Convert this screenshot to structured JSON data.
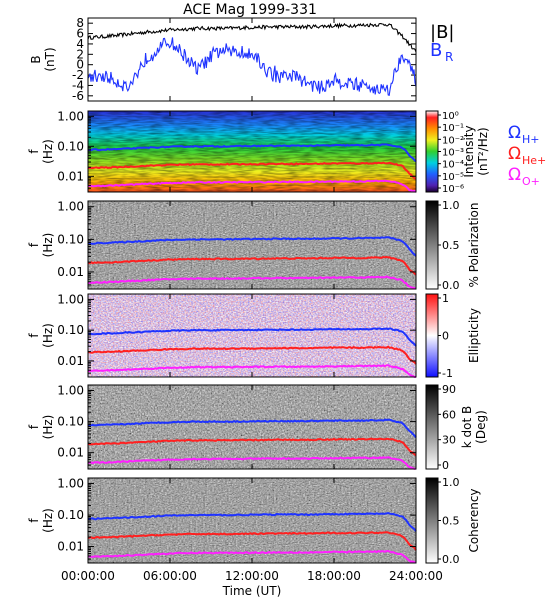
{
  "chart_data": [
    {
      "type": "line",
      "title": "ACE Mag 1999-331",
      "ylabel": "B",
      "yunit": "(nT)",
      "ylim": [
        -7,
        9
      ],
      "yticks": [
        "8",
        "6",
        "4",
        "2",
        "0",
        "-2",
        "-4",
        "-6"
      ],
      "ytick_values": [
        8,
        6,
        4,
        2,
        0,
        -2,
        -4,
        -6
      ],
      "series": [
        {
          "name": "|B|",
          "color": "#000000",
          "x": [
            0,
            2,
            4,
            6,
            8,
            10,
            12,
            14,
            16,
            18,
            20,
            22,
            23,
            24
          ],
          "values": [
            5.2,
            5.6,
            6.2,
            6.7,
            7.0,
            7.0,
            7.2,
            7.3,
            7.3,
            7.5,
            7.6,
            7.8,
            5.5,
            2.5
          ]
        },
        {
          "name": "B",
          "subscript": "R",
          "color": "#1f33ff",
          "x": [
            0,
            1,
            2,
            3,
            4,
            5,
            6,
            7,
            8,
            9,
            10,
            11,
            12,
            13,
            14,
            15,
            16,
            17,
            18,
            19,
            20,
            21,
            22,
            23,
            24
          ],
          "values": [
            -2.5,
            -2.0,
            -3.0,
            -4.5,
            0.5,
            3.0,
            4.5,
            2.0,
            -1.0,
            1.5,
            3.0,
            2.0,
            2.5,
            -1.0,
            -2.5,
            -2.0,
            -3.5,
            -4.5,
            -3.0,
            -3.5,
            -4.0,
            -4.5,
            -5.0,
            2.5,
            -3.0
          ]
        }
      ]
    },
    {
      "type": "heatmap",
      "ylabel": "f",
      "yunit": "(Hz)",
      "yscale": "log",
      "ylim": [
        0.003,
        1.5
      ],
      "yticks": [
        "1.00",
        "0.10",
        "0.01"
      ],
      "ytick_values": [
        1.0,
        0.1,
        0.01
      ],
      "colorbar_label": "Intensity",
      "colorbar_unit": "(nT²/Hz)",
      "colorbar_ticks": [
        "10⁰",
        "10⁻¹",
        "10⁻²",
        "10⁻³",
        "10⁻⁴",
        "10⁻⁵",
        "10⁻⁶"
      ],
      "colormap": "rainbow",
      "curve_labels": [
        {
          "main": "Ω",
          "sub": "H+",
          "color": "#1f33ff"
        },
        {
          "main": "Ω",
          "sub": "He+",
          "color": "#ff2020"
        },
        {
          "main": "Ω",
          "sub": "O+",
          "color": "#ff20ff"
        }
      ]
    },
    {
      "type": "heatmap",
      "ylabel": "f",
      "yunit": "(Hz)",
      "yscale": "log",
      "ylim": [
        0.003,
        1.5
      ],
      "yticks": [
        "1.00",
        "0.10",
        "0.01"
      ],
      "colorbar_label": "% Polarization",
      "colorbar_ticks": [
        "1.0",
        "0.5",
        "0.0"
      ],
      "colormap": "gray"
    },
    {
      "type": "heatmap",
      "ylabel": "f",
      "yunit": "(Hz)",
      "yscale": "log",
      "ylim": [
        0.003,
        1.5
      ],
      "yticks": [
        "1.00",
        "0.10",
        "0.01"
      ],
      "colorbar_label": "Ellipticity",
      "colorbar_ticks": [
        "1",
        "0",
        "-1"
      ],
      "colormap": "blue-white-red"
    },
    {
      "type": "heatmap",
      "ylabel": "f",
      "yunit": "(Hz)",
      "yscale": "log",
      "ylim": [
        0.003,
        1.5
      ],
      "yticks": [
        "1.00",
        "0.10",
        "0.01"
      ],
      "colorbar_label": "k dot B",
      "colorbar_unit": "(Deg)",
      "colorbar_ticks": [
        "90",
        "60",
        "30",
        "0"
      ],
      "colormap": "gray"
    },
    {
      "type": "heatmap",
      "ylabel": "f",
      "yunit": "(Hz)",
      "yscale": "log",
      "ylim": [
        0.003,
        1.5
      ],
      "yticks": [
        "1.00",
        "0.10",
        "0.01"
      ],
      "colorbar_label": "Coherency",
      "colorbar_ticks": [
        "1.0",
        "0.5",
        "0.0"
      ],
      "colormap": "gray"
    }
  ],
  "gyrofrequency_curves": {
    "x": [
      0,
      2,
      4,
      6,
      8,
      10,
      12,
      14,
      16,
      18,
      20,
      22,
      23,
      23.5,
      24
    ],
    "H+": [
      0.075,
      0.08,
      0.088,
      0.096,
      0.1,
      0.1,
      0.102,
      0.104,
      0.104,
      0.107,
      0.108,
      0.112,
      0.09,
      0.05,
      0.03
    ],
    "He+": [
      0.019,
      0.02,
      0.022,
      0.024,
      0.025,
      0.025,
      0.0255,
      0.026,
      0.026,
      0.027,
      0.027,
      0.028,
      0.022,
      0.012,
      0.008
    ],
    "O+": [
      0.0047,
      0.005,
      0.0055,
      0.006,
      0.0063,
      0.0063,
      0.0064,
      0.0065,
      0.0065,
      0.0067,
      0.0068,
      0.007,
      0.0055,
      0.0035,
      0.003
    ]
  },
  "x_axis": {
    "label": "Time (UT)",
    "range": [
      0,
      24
    ],
    "ticks": [
      "00:00:00",
      "06:00:00",
      "12:00:00",
      "18:00:00",
      "24:00:00"
    ],
    "tick_values": [
      0,
      6,
      12,
      18,
      24
    ]
  }
}
